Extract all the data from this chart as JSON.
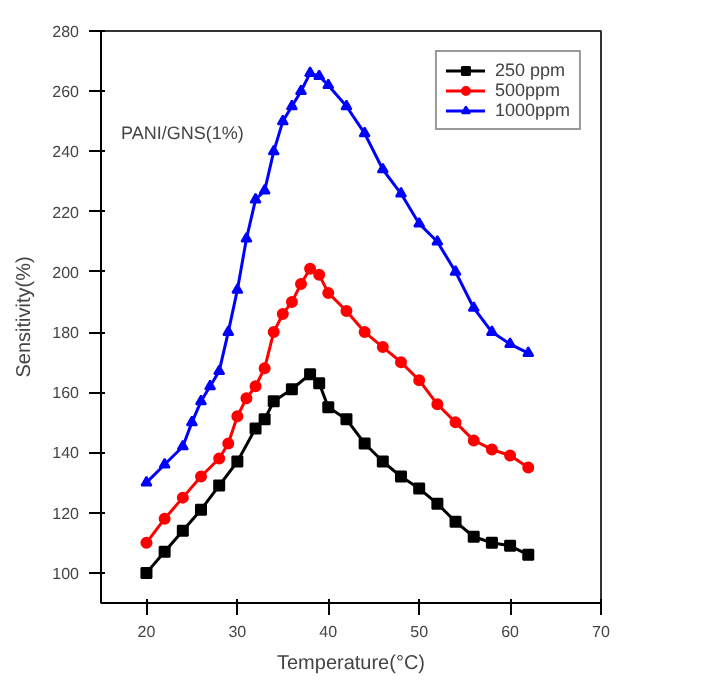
{
  "chart_data": {
    "type": "line",
    "xlabel": "Temperature(°C)",
    "ylabel": "Sensitivity(%)",
    "annotations": [
      "PANI/GNS(1%)"
    ],
    "xlim": [
      15,
      70
    ],
    "xticks": [
      20,
      30,
      40,
      50,
      60,
      70
    ],
    "ylim": [
      90,
      280
    ],
    "yticks": [
      100,
      120,
      140,
      160,
      180,
      200,
      220,
      240,
      260,
      280
    ],
    "grid": false,
    "legend": "top right",
    "line_style": "solid",
    "series": [
      {
        "name": "250 ppm",
        "color": "#000000",
        "marker": "square",
        "x": [
          20,
          22,
          24,
          26,
          28,
          30,
          32,
          33,
          34,
          36,
          38,
          39,
          40,
          42,
          44,
          46,
          48,
          50,
          52,
          54,
          56,
          58,
          60,
          62
        ],
        "values": [
          100,
          107,
          114,
          121,
          129,
          137,
          148,
          151,
          157,
          161,
          166,
          163,
          155,
          151,
          143,
          137,
          132,
          128,
          123,
          117,
          112,
          110,
          109,
          106
        ]
      },
      {
        "name": "500ppm",
        "color": "#ff0000",
        "marker": "circle",
        "x": [
          20,
          22,
          24,
          26,
          28,
          29,
          30,
          31,
          32,
          33,
          34,
          35,
          36,
          37,
          38,
          39,
          40,
          42,
          44,
          46,
          48,
          50,
          52,
          54,
          56,
          58,
          60,
          62
        ],
        "values": [
          110,
          118,
          125,
          132,
          138,
          143,
          152,
          158,
          162,
          168,
          180,
          186,
          190,
          196,
          201,
          199,
          193,
          187,
          180,
          175,
          170,
          164,
          156,
          150,
          144,
          141,
          139,
          135
        ]
      },
      {
        "name": "1000ppm",
        "color": "#0000ff",
        "marker": "triangle",
        "x": [
          20,
          22,
          24,
          25,
          26,
          27,
          28,
          29,
          30,
          31,
          32,
          33,
          34,
          35,
          36,
          37,
          38,
          39,
          40,
          42,
          44,
          46,
          48,
          50,
          52,
          54,
          56,
          58,
          60,
          62
        ],
        "values": [
          130,
          136,
          142,
          150,
          157,
          162,
          167,
          180,
          194,
          211,
          224,
          227,
          240,
          250,
          255,
          260,
          266,
          265,
          262,
          255,
          246,
          234,
          226,
          216,
          210,
          200,
          188,
          180,
          176,
          173
        ]
      }
    ]
  }
}
